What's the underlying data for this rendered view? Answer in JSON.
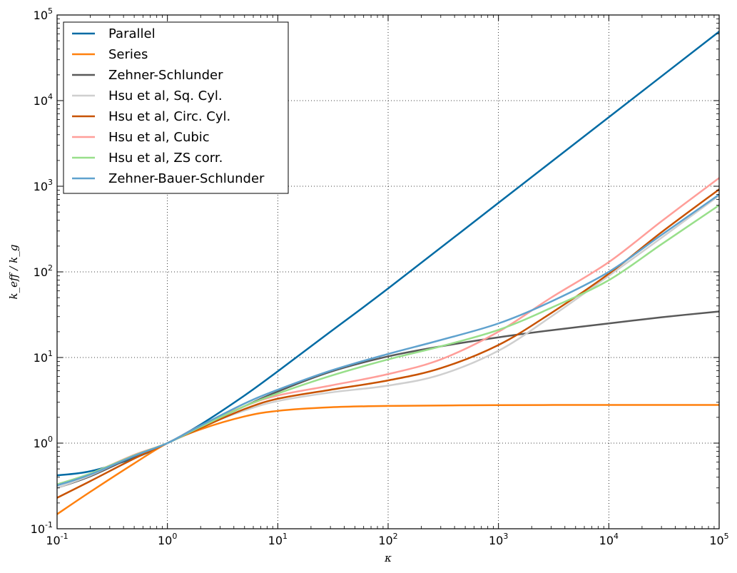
{
  "chart_data": {
    "type": "line",
    "title": "",
    "xlabel": "κ",
    "ylabel": "k_eff / k_g",
    "xscale": "log",
    "yscale": "log",
    "xlim": [
      0.1,
      100000
    ],
    "ylim": [
      0.1,
      100000
    ],
    "grid": true,
    "legend_position": "top-left",
    "x_ticks": [
      {
        "base": "10",
        "exp": "-1"
      },
      {
        "base": "10",
        "exp": "0"
      },
      {
        "base": "10",
        "exp": "1"
      },
      {
        "base": "10",
        "exp": "2"
      },
      {
        "base": "10",
        "exp": "3"
      },
      {
        "base": "10",
        "exp": "4"
      },
      {
        "base": "10",
        "exp": "5"
      }
    ],
    "y_ticks": [
      {
        "base": "10",
        "exp": "-1"
      },
      {
        "base": "10",
        "exp": "0"
      },
      {
        "base": "10",
        "exp": "1"
      },
      {
        "base": "10",
        "exp": "2"
      },
      {
        "base": "10",
        "exp": "3"
      },
      {
        "base": "10",
        "exp": "4"
      },
      {
        "base": "10",
        "exp": "5"
      }
    ],
    "series": [
      {
        "name": "Parallel",
        "color": "#006ba4",
        "x": [
          0.1,
          0.2,
          0.5,
          1,
          2,
          5,
          10,
          30,
          100,
          1000,
          10000,
          100000
        ],
        "y": [
          0.42,
          0.47,
          0.67,
          1.0,
          1.65,
          3.6,
          6.9,
          20,
          64,
          640,
          6400,
          64000
        ]
      },
      {
        "name": "Series",
        "color": "#ff800e",
        "x": [
          0.1,
          0.2,
          0.5,
          1,
          2,
          5,
          10,
          30,
          100,
          1000,
          10000,
          100000
        ],
        "y": [
          0.148,
          0.27,
          0.58,
          1.0,
          1.45,
          2.05,
          2.38,
          2.62,
          2.72,
          2.78,
          2.79,
          2.79
        ]
      },
      {
        "name": "Zehner-Schlunder",
        "color": "#595959",
        "x": [
          0.1,
          0.2,
          0.5,
          1,
          2,
          5,
          10,
          30,
          100,
          300,
          1000,
          3000,
          10000,
          30000,
          100000
        ],
        "y": [
          0.3,
          0.41,
          0.7,
          1.0,
          1.55,
          2.7,
          4.0,
          6.8,
          10.3,
          13.5,
          17.2,
          20.8,
          25.0,
          29.5,
          34.5
        ]
      },
      {
        "name": "Hsu et al, Sq. Cyl.",
        "color": "#cfcfcf",
        "x": [
          0.1,
          0.2,
          0.5,
          1,
          2,
          5,
          10,
          30,
          100,
          300,
          1000,
          3000,
          10000,
          30000,
          100000
        ],
        "y": [
          0.3,
          0.42,
          0.72,
          1.0,
          1.55,
          2.4,
          3.1,
          3.9,
          4.7,
          6.3,
          12.0,
          30,
          90,
          250,
          780
        ]
      },
      {
        "name": "Hsu et al, Circ. Cyl.",
        "color": "#c85200",
        "x": [
          0.1,
          0.2,
          0.5,
          1,
          2,
          5,
          10,
          30,
          100,
          300,
          1000,
          3000,
          10000,
          30000,
          100000
        ],
        "y": [
          0.23,
          0.36,
          0.66,
          1.0,
          1.5,
          2.5,
          3.3,
          4.2,
          5.4,
          7.5,
          14.0,
          33,
          95,
          290,
          920
        ]
      },
      {
        "name": "Hsu et al, Cubic",
        "color": "#ff9e99",
        "x": [
          0.1,
          0.2,
          0.5,
          1,
          2,
          5,
          10,
          30,
          100,
          300,
          1000,
          3000,
          10000,
          30000,
          100000
        ],
        "y": [
          0.33,
          0.44,
          0.73,
          1.0,
          1.6,
          2.7,
          3.6,
          4.7,
          6.4,
          9.5,
          20,
          50,
          130,
          390,
          1250
        ]
      },
      {
        "name": "Hsu et al, ZS corr.",
        "color": "#98df8a",
        "x": [
          0.1,
          0.2,
          0.5,
          1,
          2,
          5,
          10,
          30,
          100,
          300,
          1000,
          3000,
          10000,
          30000,
          100000
        ],
        "y": [
          0.33,
          0.44,
          0.72,
          1.0,
          1.55,
          2.7,
          3.8,
          6.1,
          9.5,
          13.5,
          21,
          38,
          80,
          210,
          600
        ]
      },
      {
        "name": "Zehner-Bauer-Schlunder",
        "color": "#5fa2ce",
        "x": [
          0.1,
          0.2,
          0.5,
          1,
          2,
          5,
          10,
          30,
          100,
          300,
          1000,
          3000,
          10000,
          30000,
          100000
        ],
        "y": [
          0.32,
          0.43,
          0.71,
          1.0,
          1.6,
          2.9,
          4.2,
          7.0,
          11.0,
          16,
          25,
          45,
          100,
          270,
          800
        ]
      }
    ]
  }
}
